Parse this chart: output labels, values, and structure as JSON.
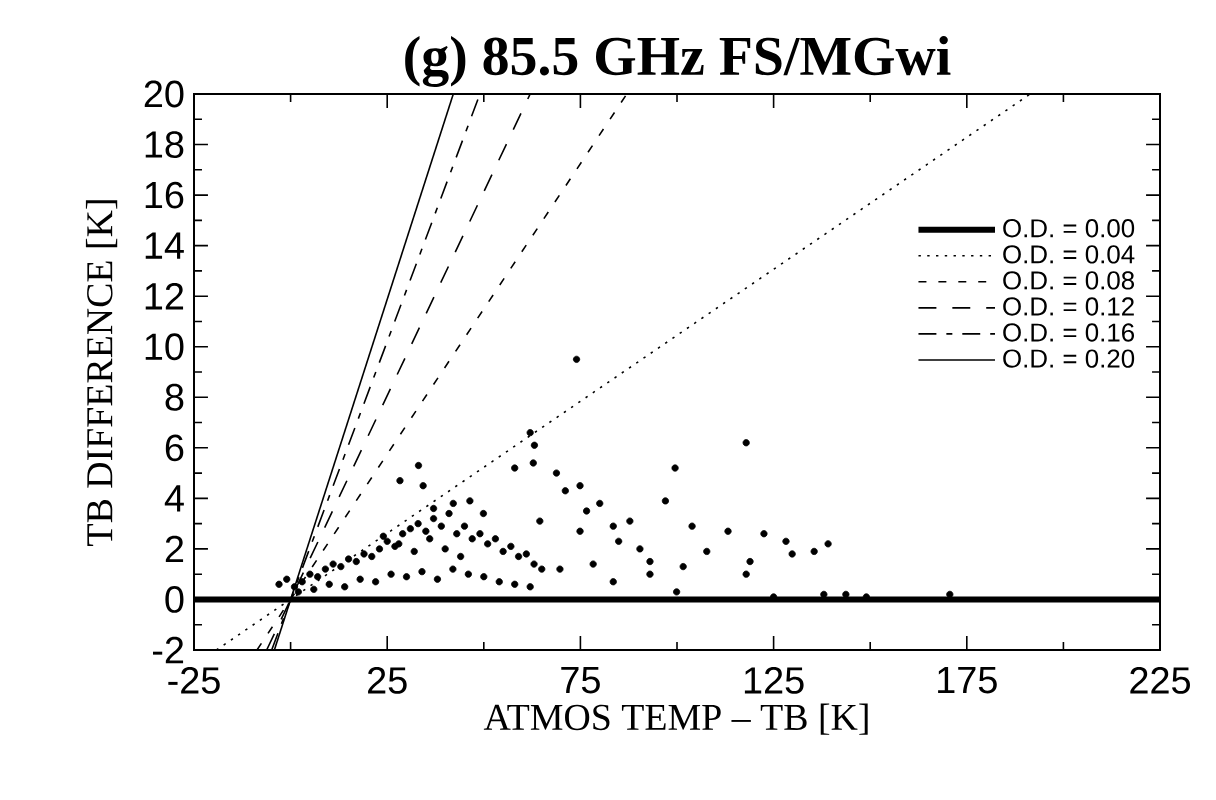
{
  "chart_data": {
    "type": "scatter",
    "title": "(g) 85.5 GHz FS/MGwi",
    "xlabel": "ATMOS TEMP – TB [K]",
    "ylabel": "TB DIFFERENCE [K]",
    "xlim": [
      -25,
      225
    ],
    "ylim": [
      -2,
      20
    ],
    "xticks": [
      -25,
      25,
      75,
      125,
      175,
      225
    ],
    "yticks": [
      -2,
      0,
      2,
      4,
      6,
      8,
      10,
      12,
      14,
      16,
      18,
      20
    ],
    "grid": false,
    "legend": "top right",
    "series": [
      {
        "color": "#000000",
        "marker": "circle",
        "x": [
          74,
          62,
          63.1,
          62.8,
          58,
          68.8,
          33.1,
          28.3,
          34.3,
          74.9,
          71.1,
          99.5,
          97,
          80,
          76.6,
          46.4,
          42.1,
          37,
          49.9,
          64.5,
          87.8,
          103.9,
          83.5,
          74.9,
          84.9,
          107.7,
          90.4,
          93,
          78.3,
          101.6,
          93,
          69.7,
          83.5,
          99.9,
          117.9,
          113.2,
          122.5,
          128.2,
          129.8,
          139.1,
          135.5,
          118.9,
          117.9,
          138,
          143.7,
          149,
          170.6,
          125,
          -3,
          -1,
          1,
          3,
          5,
          7,
          9,
          11,
          13,
          15,
          17,
          19,
          21,
          23,
          25,
          27,
          29,
          31,
          33,
          35,
          37,
          39,
          41,
          43,
          45,
          47,
          49,
          51,
          53,
          55,
          57,
          59,
          61,
          63,
          65,
          2,
          6,
          10,
          14,
          18,
          22,
          26,
          30,
          34,
          38,
          42,
          46,
          50,
          54,
          58,
          62,
          24,
          28,
          32,
          36,
          40,
          44
        ],
        "values": [
          9.5,
          6.6,
          6.1,
          5.4,
          5.2,
          5.0,
          5.3,
          4.7,
          4.5,
          4.5,
          4.3,
          5.2,
          3.9,
          3.8,
          3.5,
          3.9,
          3.8,
          3.6,
          3.4,
          3.1,
          3.1,
          2.9,
          2.9,
          2.7,
          2.3,
          1.9,
          2.0,
          1.5,
          1.4,
          1.3,
          1.0,
          1.2,
          0.7,
          0.3,
          6.2,
          2.7,
          2.6,
          2.3,
          1.8,
          2.2,
          1.9,
          1.5,
          1.0,
          0.2,
          0.2,
          0.1,
          0.2,
          0.1,
          0.6,
          0.8,
          0.5,
          0.7,
          1.0,
          0.9,
          1.2,
          1.4,
          1.3,
          1.6,
          1.5,
          1.8,
          1.7,
          2.0,
          2.3,
          2.1,
          2.6,
          2.8,
          3.0,
          2.7,
          3.2,
          2.9,
          3.4,
          2.6,
          2.9,
          2.4,
          2.6,
          2.2,
          2.4,
          1.9,
          2.1,
          1.7,
          1.8,
          1.4,
          1.2,
          0.3,
          0.4,
          0.6,
          0.5,
          0.8,
          0.7,
          1.0,
          0.9,
          1.1,
          0.8,
          1.2,
          1.0,
          0.9,
          0.7,
          0.6,
          0.5,
          2.5,
          2.2,
          1.9,
          2.4,
          2.0,
          1.7
        ]
      },
      {
        "type": "line",
        "name": "O.D. = 0.00",
        "color": "#000000",
        "line_style": "solid",
        "x": [
          -25,
          225
        ],
        "values": [
          0,
          0
        ]
      },
      {
        "type": "line",
        "name": "O.D. = 0.04",
        "color": "#000000",
        "line_style": "dotted",
        "x": [
          -19.2,
          191.4
        ],
        "values": [
          -2,
          20
        ]
      },
      {
        "type": "line",
        "name": "O.D. = 0.08",
        "color": "#000000",
        "line_style": "dashed",
        "x": [
          -8.7,
          87
        ],
        "values": [
          -2,
          20
        ]
      },
      {
        "type": "line",
        "name": "O.D. = 0.12",
        "color": "#000000",
        "line_style": "dashed",
        "x": [
          -6.2,
          62
        ],
        "values": [
          -2,
          20
        ]
      },
      {
        "type": "line",
        "name": "O.D. = 0.16",
        "color": "#000000",
        "line_style": "dashed",
        "x": [
          -4.9,
          49
        ],
        "values": [
          -2,
          20
        ]
      },
      {
        "type": "line",
        "name": "O.D. = 0.20",
        "color": "#000000",
        "line_style": "solid",
        "x": [
          -4.2,
          42.1
        ],
        "values": [
          -2,
          20
        ]
      }
    ]
  }
}
